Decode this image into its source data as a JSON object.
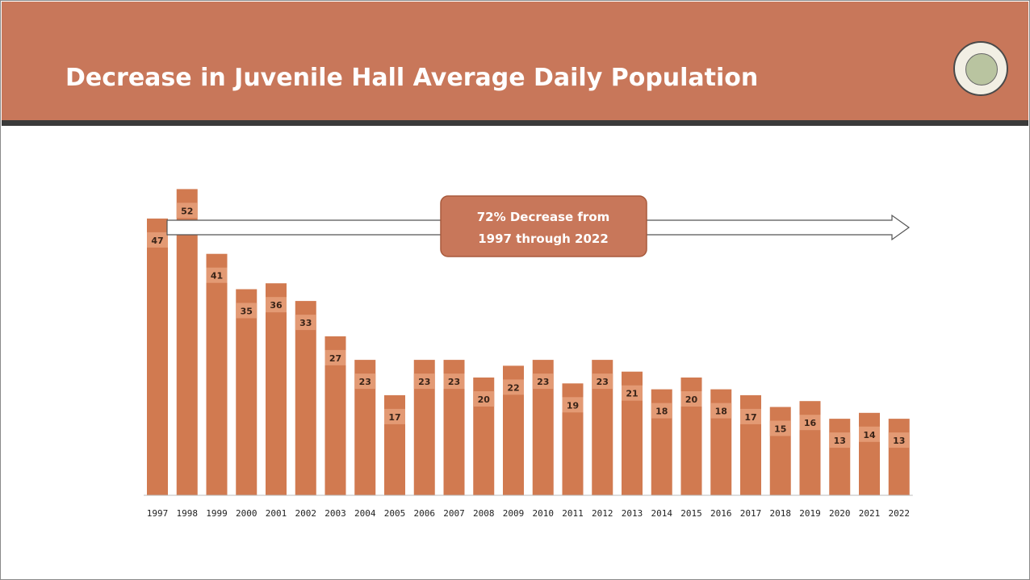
{
  "slide": {
    "title": "Decrease in Juvenile Hall Average Daily Population"
  },
  "colors": {
    "header": "#c8775a",
    "bar": "#d17a50",
    "bar_label_band": "#e39a74",
    "callout_fill": "#c8775a",
    "callout_text": "#ffffff"
  },
  "icons": {
    "seal": "county-seal-icon"
  },
  "chart_data": {
    "type": "bar",
    "title": "",
    "xlabel": "",
    "ylabel": "",
    "categories": [
      "1997",
      "1998",
      "1999",
      "2000",
      "2001",
      "2002",
      "2003",
      "2004",
      "2005",
      "2006",
      "2007",
      "2008",
      "2009",
      "2010",
      "2011",
      "2012",
      "2013",
      "2014",
      "2015",
      "2016",
      "2017",
      "2018",
      "2019",
      "2020",
      "2021",
      "2022"
    ],
    "values": [
      47,
      52,
      41,
      35,
      36,
      33,
      27,
      23,
      17,
      23,
      23,
      20,
      22,
      23,
      19,
      23,
      21,
      18,
      20,
      18,
      17,
      15,
      16,
      13,
      14,
      13
    ],
    "ylim": [
      0,
      55
    ],
    "grid": false,
    "legend": "none",
    "annotation": {
      "line1": "72% Decrease from",
      "line2": "1997 through 2022"
    }
  }
}
